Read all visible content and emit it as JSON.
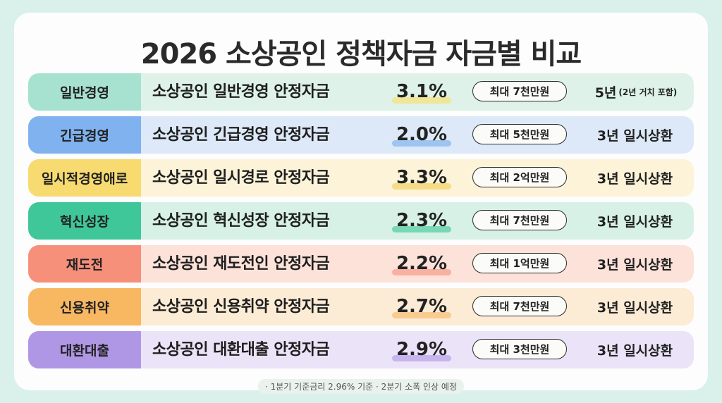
{
  "title": "2026 소상공인 정책자금 자금별 비교",
  "rows": [
    {
      "tag": "일반경영",
      "name": "소상공인 일반경영 안정자금",
      "rate": "3.1%",
      "limit": "최대 7천만원",
      "term": "5년",
      "term_note": "(2년 거치 포함)",
      "tag_color": "#a6e2cf",
      "row_color": "#def2ea",
      "hl_color": "#f6e27a"
    },
    {
      "tag": "긴급경영",
      "name": "소상공인 긴급경영 안정자금",
      "rate": "2.0%",
      "limit": "최대 5천만원",
      "term": "3년 일시상환",
      "term_note": "",
      "tag_color": "#7fb2ee",
      "row_color": "#dde9f8",
      "hl_color": "#8ab7ec"
    },
    {
      "tag": "일시적경영애로",
      "name": "소상공인 일시경로 안정자금",
      "rate": "3.3%",
      "limit": "최대 2억만원",
      "term": "3년 일시상환",
      "term_note": "",
      "tag_color": "#f7db70",
      "row_color": "#fcf3d8",
      "hl_color": "#f3d46a"
    },
    {
      "tag": "혁신성장",
      "name": "소상공인 혁신성장 안정자금",
      "rate": "2.3%",
      "limit": "최대 7천만원",
      "term": "3년 일시상환",
      "term_note": "",
      "tag_color": "#3fc79a",
      "row_color": "#d7f1e6",
      "hl_color": "#58cfa5"
    },
    {
      "tag": "재도전",
      "name": "소상공인 재도전인 안정자금",
      "rate": "2.2%",
      "limit": "최대 1억만원",
      "term": "3년 일시상환",
      "term_note": "",
      "tag_color": "#f6907b",
      "row_color": "#fde2da",
      "hl_color": "#f6a08e"
    },
    {
      "tag": "신용취약",
      "name": "소상공인 신용취약 안정자금",
      "rate": "2.7%",
      "limit": "최대 7천만원",
      "term": "3년 일시상환",
      "term_note": "",
      "tag_color": "#f8b862",
      "row_color": "#fdecd5",
      "hl_color": "#f7c079"
    },
    {
      "tag": "대환대출",
      "name": "소상공인 대환대출 안정자금",
      "rate": "2.9%",
      "limit": "최대 3천만원",
      "term": "3년 일시상환",
      "term_note": "",
      "tag_color": "#b097e6",
      "row_color": "#ebe3f8",
      "hl_color": "#bba4ea"
    }
  ],
  "footnote": "· 1분기 기준금리 2.96% 기준 · 2분기 소폭 인상 예정"
}
